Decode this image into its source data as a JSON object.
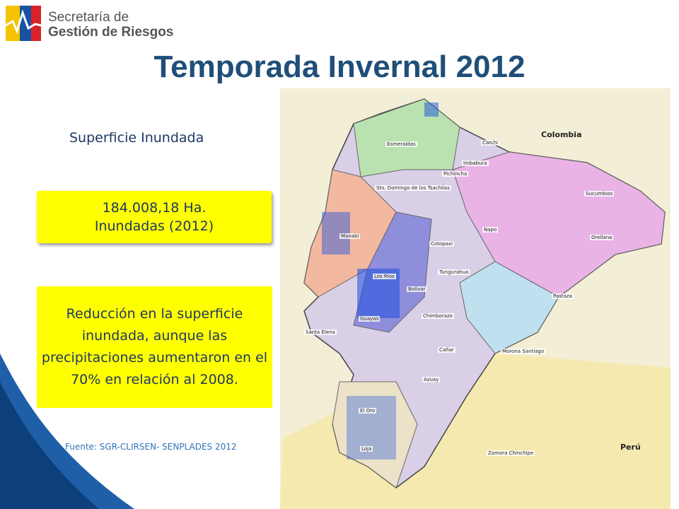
{
  "header": {
    "logo_line1": "Secretaría de",
    "logo_line2": "Gestión de Riesgos",
    "title": "Temporada Invernal 2012"
  },
  "content": {
    "subtitle": "Superficie Inundada",
    "highlight": [
      "184.008,18 Ha.",
      "Inundadas (2012)"
    ],
    "note": "Reducción en la superficie inundada, aunque las precipitaciones aumentaron en el 70% en relación al 2008.",
    "source": "Fuente: SGR-CLIRSEN- SENPLADES 2012"
  },
  "map": {
    "countries": [
      "Colombia",
      "Perú"
    ],
    "provinces": [
      "Esmeraldas",
      "Carchi",
      "Imbabura",
      "Sucumbios",
      "Pichincha",
      "Sto. Domingo de los Tsachilas",
      "Manabí",
      "Napo",
      "Orellana",
      "Cotopaxi",
      "Los Ríos",
      "Tungurahua",
      "Bolívar",
      "Pastaza",
      "Santa Elena",
      "Guayas",
      "Chimborazo",
      "Cañar",
      "Morona Santiago",
      "Azuay",
      "El Oro",
      "Loja",
      "Zamora Chinchipe"
    ]
  }
}
